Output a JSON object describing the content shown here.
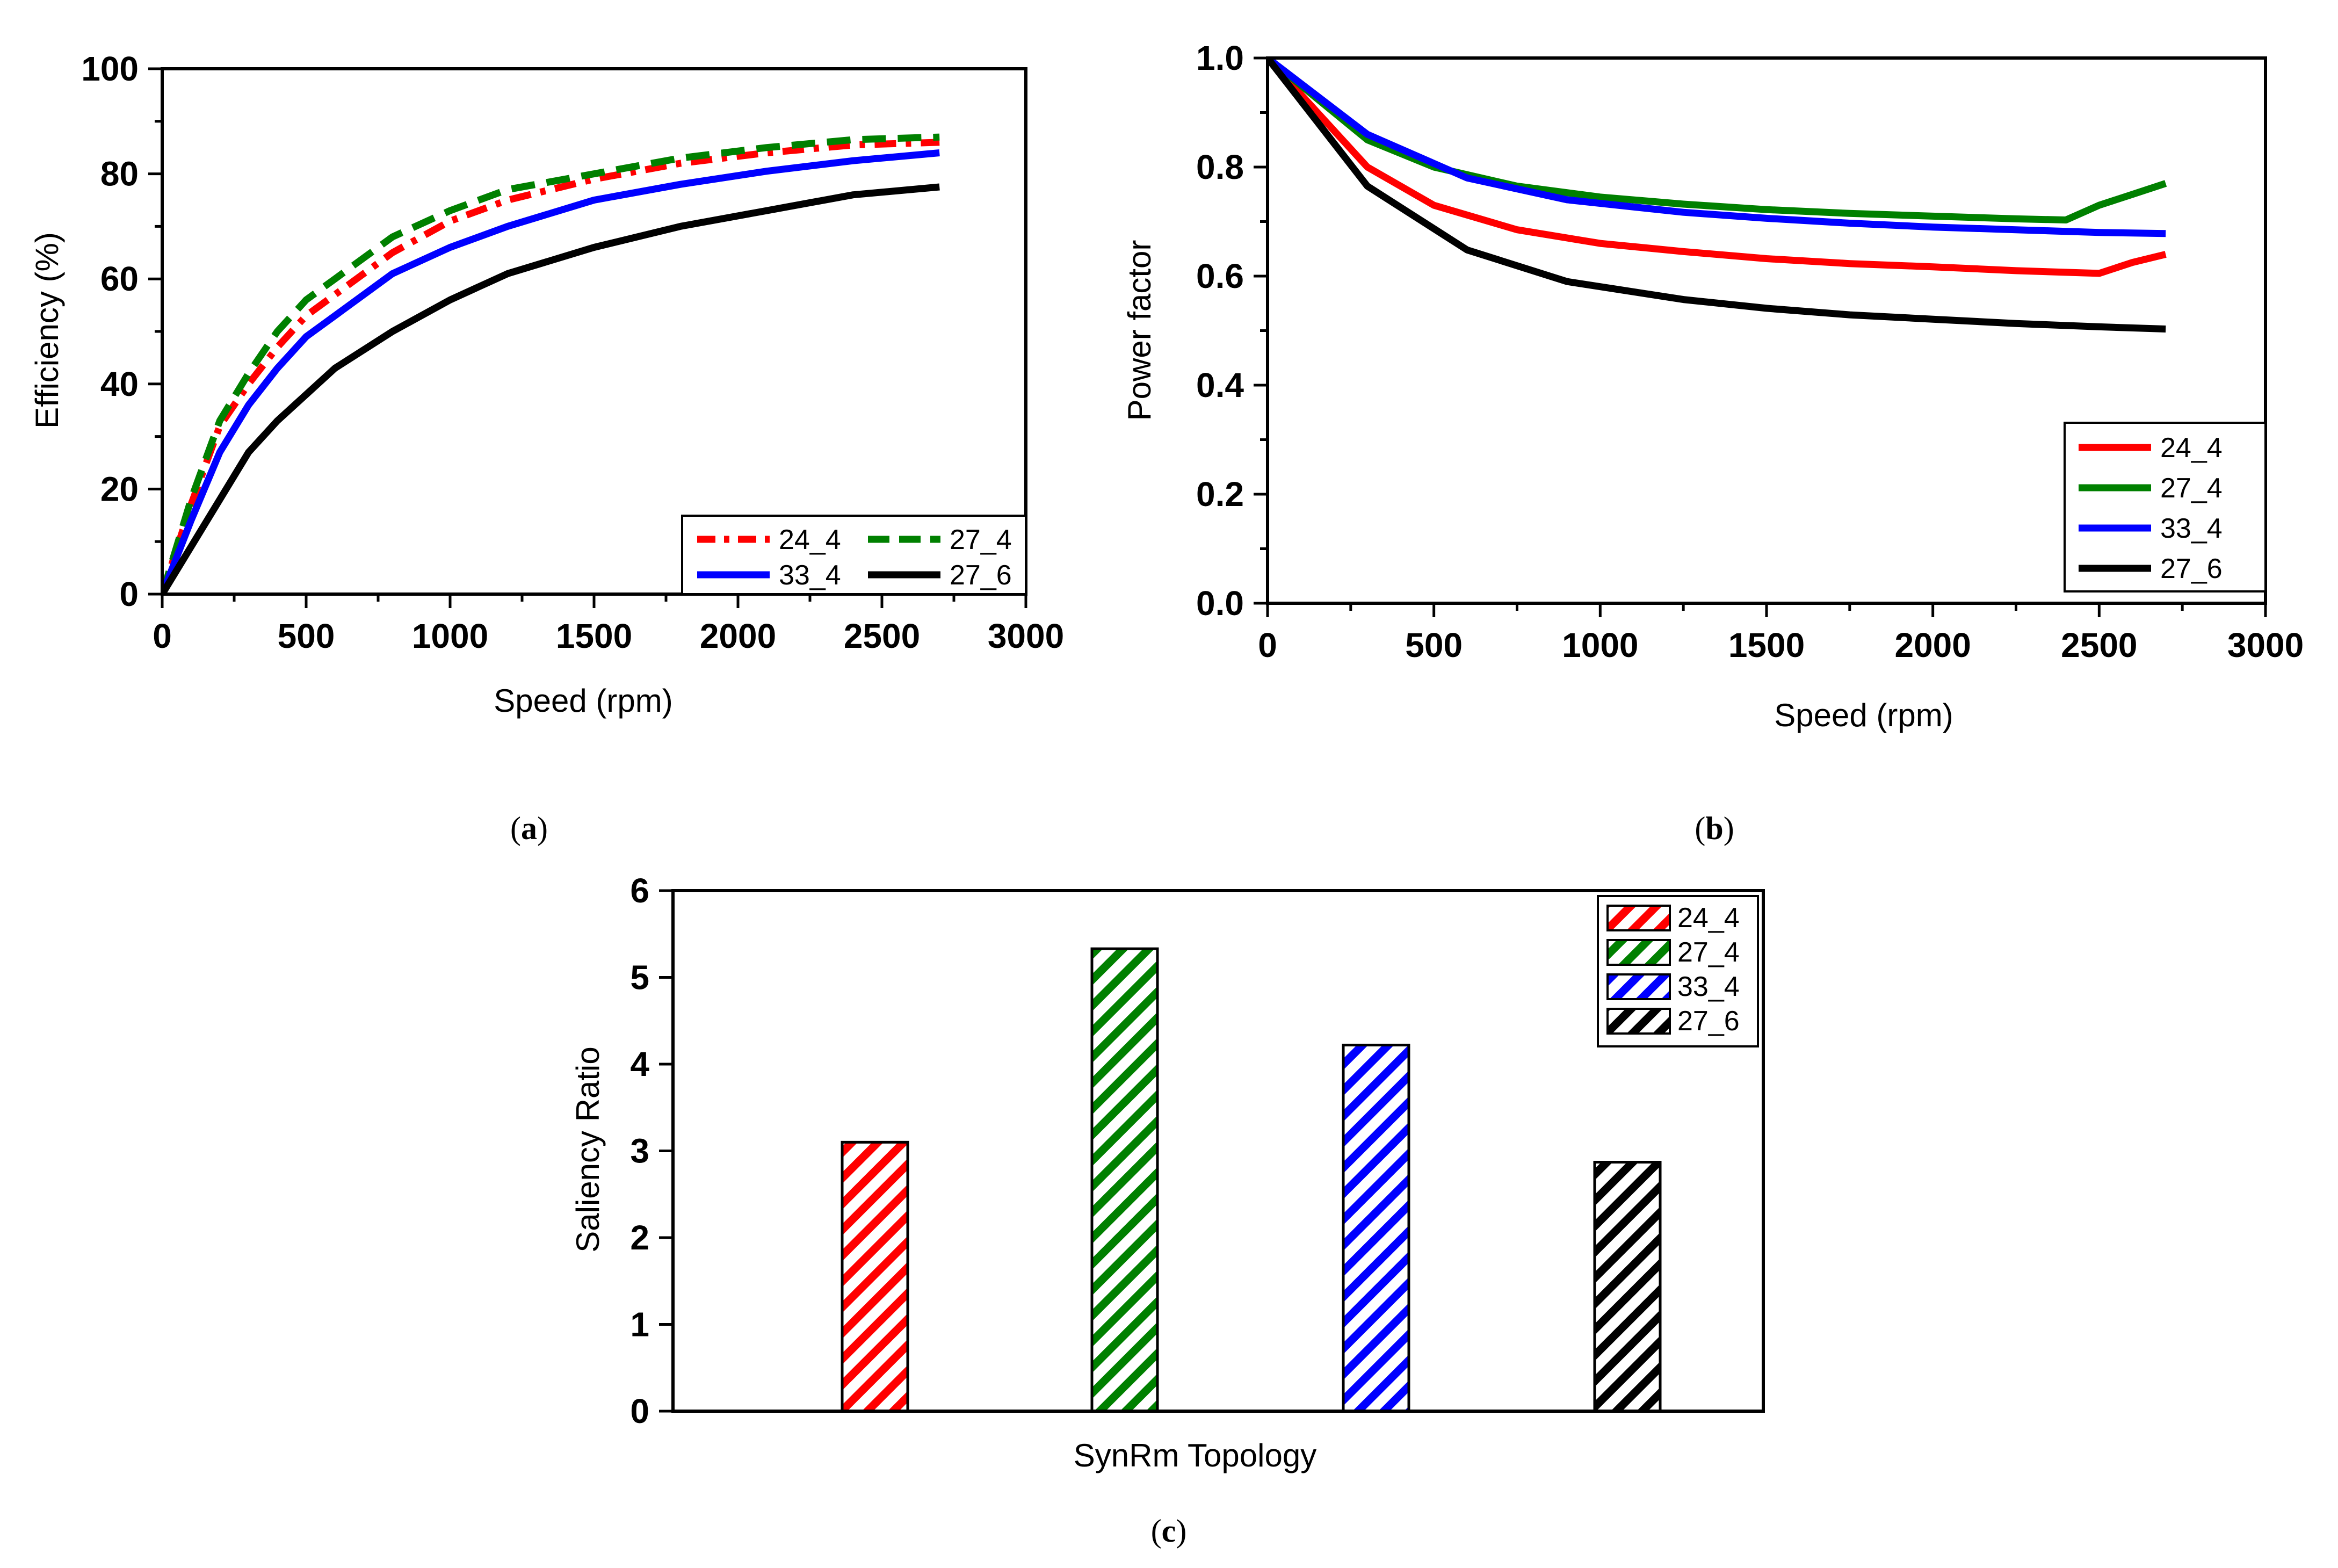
{
  "chart_data": [
    {
      "id": "a",
      "type": "line",
      "caption_letter": "a",
      "xlabel": "Speed (rpm)",
      "ylabel": "Efficiency (%)",
      "xlim": [
        0,
        3000
      ],
      "ylim": [
        0,
        100
      ],
      "xticks": [
        0,
        500,
        1000,
        1500,
        2000,
        2500,
        3000
      ],
      "yticks": [
        0,
        20,
        40,
        60,
        80,
        100
      ],
      "legend_position": "bottom-right",
      "series": [
        {
          "name": "24_4",
          "color": "#ff0000",
          "style": "dash-dot",
          "x": [
            0,
            100,
            200,
            300,
            400,
            500,
            600,
            800,
            1000,
            1200,
            1500,
            1800,
            2100,
            2400,
            2700
          ],
          "y": [
            0,
            17,
            32,
            40,
            47,
            53,
            57,
            65,
            71,
            75,
            79,
            82,
            84,
            85.5,
            86
          ]
        },
        {
          "name": "27_4",
          "color": "#008000",
          "style": "dash",
          "x": [
            0,
            100,
            200,
            300,
            400,
            500,
            600,
            800,
            1000,
            1200,
            1500,
            1800,
            2100,
            2400,
            2700
          ],
          "y": [
            0,
            18,
            33,
            42,
            50,
            56,
            60,
            68,
            73,
            77,
            80,
            83,
            85,
            86.5,
            87
          ]
        },
        {
          "name": "33_4",
          "color": "#0000ff",
          "style": "solid",
          "x": [
            0,
            100,
            200,
            300,
            400,
            500,
            600,
            800,
            1000,
            1200,
            1500,
            1800,
            2100,
            2400,
            2700
          ],
          "y": [
            0,
            14,
            27,
            36,
            43,
            49,
            53,
            61,
            66,
            70,
            75,
            78,
            80.5,
            82.5,
            84
          ]
        },
        {
          "name": "27_6",
          "color": "#000000",
          "style": "solid",
          "x": [
            0,
            100,
            200,
            300,
            400,
            500,
            600,
            800,
            1000,
            1200,
            1500,
            1800,
            2100,
            2400,
            2700
          ],
          "y": [
            0,
            9,
            18,
            27,
            33,
            38,
            43,
            50,
            56,
            61,
            66,
            70,
            73,
            76,
            77.5
          ]
        }
      ]
    },
    {
      "id": "b",
      "type": "line",
      "caption_letter": "b",
      "xlabel": "Speed (rpm)",
      "ylabel": "Power factor",
      "xlim": [
        0,
        3000
      ],
      "ylim": [
        0,
        1.0
      ],
      "xticks": [
        0,
        500,
        1000,
        1500,
        2000,
        2500,
        3000
      ],
      "yticks": [
        0.0,
        0.2,
        0.4,
        0.6,
        0.8,
        1.0
      ],
      "ytick_labels": [
        "0.0",
        "0.2",
        "0.4",
        "0.6",
        "0.8",
        "1.0"
      ],
      "legend_position": "bottom-right",
      "series": [
        {
          "name": "24_4",
          "color": "#ff0000",
          "style": "solid",
          "x": [
            0,
            300,
            500,
            750,
            1000,
            1250,
            1500,
            1750,
            2000,
            2250,
            2500,
            2600,
            2700
          ],
          "y": [
            1.0,
            0.8,
            0.73,
            0.685,
            0.66,
            0.645,
            0.632,
            0.623,
            0.617,
            0.61,
            0.605,
            0.625,
            0.64
          ]
        },
        {
          "name": "27_4",
          "color": "#008000",
          "style": "solid",
          "x": [
            0,
            300,
            500,
            750,
            1000,
            1250,
            1500,
            1750,
            2000,
            2250,
            2400,
            2500,
            2600,
            2700
          ],
          "y": [
            1.0,
            0.85,
            0.8,
            0.765,
            0.745,
            0.732,
            0.722,
            0.715,
            0.71,
            0.705,
            0.703,
            0.73,
            0.75,
            0.77
          ]
        },
        {
          "name": "33_4",
          "color": "#0000ff",
          "style": "solid",
          "x": [
            0,
            300,
            600,
            900,
            1250,
            1500,
            1750,
            2000,
            2250,
            2500,
            2700
          ],
          "y": [
            1.0,
            0.86,
            0.78,
            0.74,
            0.717,
            0.706,
            0.697,
            0.69,
            0.685,
            0.68,
            0.678
          ]
        },
        {
          "name": "27_6",
          "color": "#000000",
          "style": "solid",
          "x": [
            0,
            300,
            600,
            900,
            1250,
            1500,
            1750,
            2000,
            2250,
            2500,
            2700
          ],
          "y": [
            1.0,
            0.765,
            0.648,
            0.59,
            0.557,
            0.541,
            0.529,
            0.521,
            0.513,
            0.507,
            0.503
          ]
        }
      ]
    },
    {
      "id": "c",
      "type": "bar",
      "caption_letter": "c",
      "xlabel": "SynRm Topology",
      "ylabel": "Saliency Ratio",
      "ylim": [
        0,
        6
      ],
      "yticks": [
        0,
        1,
        2,
        3,
        4,
        5,
        6
      ],
      "legend_position": "top-right",
      "categories": [
        "24_4",
        "27_4",
        "33_4",
        "27_6"
      ],
      "values": [
        3.1,
        5.33,
        4.22,
        2.87
      ],
      "colors": [
        "#ff0000",
        "#008000",
        "#0000ff",
        "#000000"
      ],
      "pattern": "diagonal-hatch"
    }
  ]
}
